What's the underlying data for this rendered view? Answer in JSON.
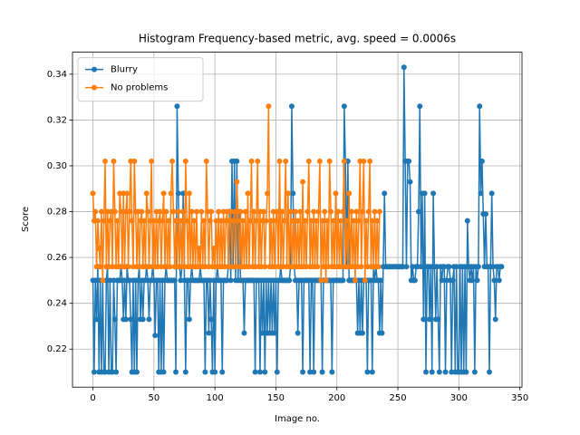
{
  "chart_data": {
    "type": "line",
    "title": "Histogram Frequency-based metric, avg. speed = 0.0006s",
    "x_label": "Image no.",
    "y_label": "Score",
    "xlim": [
      -16.75,
      351.75
    ],
    "xticks": [
      0,
      50,
      100,
      150,
      200,
      250,
      300,
      350
    ],
    "ylim": [
      0.2034,
      0.3496
    ],
    "yticks": [
      0.22,
      0.24,
      0.26,
      0.28,
      {
        "value": 0.3,
        "label": "0.30"
      },
      0.32,
      0.34
    ],
    "grid": true,
    "legend": "upper left",
    "series": [
      {
        "name": "Blurry",
        "color": "#1f77b4",
        "x": [
          0,
          1,
          2,
          3,
          4,
          5,
          6,
          7,
          8,
          9,
          10,
          11,
          12,
          13,
          14,
          15,
          16,
          17,
          18,
          19,
          20,
          21,
          22,
          23,
          24,
          25,
          26,
          27,
          28,
          29,
          30,
          31,
          32,
          33,
          34,
          35,
          36,
          37,
          38,
          39,
          40,
          41,
          42,
          43,
          44,
          45,
          46,
          47,
          48,
          49,
          50,
          51,
          52,
          53,
          54,
          55,
          56,
          57,
          58,
          59,
          60,
          61,
          62,
          63,
          64,
          65,
          66,
          67,
          68,
          69,
          70,
          71,
          72,
          73,
          74,
          75,
          76,
          77,
          78,
          79,
          80,
          81,
          82,
          83,
          84,
          85,
          86,
          87,
          88,
          89,
          90,
          91,
          92,
          93,
          94,
          95,
          96,
          97,
          98,
          99,
          100,
          101,
          102,
          103,
          104,
          105,
          106,
          107,
          108,
          109,
          110,
          111,
          112,
          113,
          114,
          115,
          116,
          117,
          118,
          119,
          120,
          121,
          122,
          123,
          124,
          125,
          126,
          127,
          128,
          129,
          130,
          131,
          132,
          133,
          134,
          135,
          136,
          137,
          138,
          139,
          140,
          141,
          142,
          143,
          144,
          145,
          146,
          147,
          148,
          149,
          150,
          151,
          152,
          153,
          154,
          155,
          156,
          157,
          158,
          159,
          160,
          161,
          162,
          163,
          164,
          165,
          166,
          167,
          168,
          169,
          170,
          171,
          172,
          173,
          174,
          175,
          176,
          177,
          178,
          179,
          180,
          181,
          182,
          183,
          184,
          185,
          186,
          187,
          188,
          189,
          190,
          191,
          192,
          193,
          194,
          195,
          196,
          197,
          198,
          199,
          200,
          201,
          202,
          203,
          204,
          205,
          206,
          207,
          208,
          209,
          210,
          211,
          212,
          213,
          214,
          215,
          216,
          217,
          218,
          219,
          220,
          221,
          222,
          223,
          224,
          225,
          226,
          227,
          228,
          229,
          230,
          231,
          232,
          233,
          234,
          235,
          236,
          237,
          238,
          239,
          240,
          241,
          242,
          243,
          244,
          245,
          246,
          247,
          248,
          249,
          250,
          251,
          252,
          253,
          254,
          255,
          256,
          257,
          258,
          259,
          260,
          261,
          262,
          263,
          264,
          265,
          266,
          267,
          268,
          269,
          270,
          271,
          272,
          273,
          274,
          275,
          276,
          277,
          278,
          279,
          280,
          281,
          282,
          283,
          284,
          285,
          286,
          287,
          288,
          289,
          290,
          291,
          292,
          293,
          294,
          295,
          296,
          297,
          298,
          299,
          300,
          301,
          302,
          303,
          304,
          305,
          306,
          307,
          308,
          309,
          310,
          311,
          312,
          313,
          314,
          315,
          316,
          317,
          318,
          319,
          320,
          321,
          322,
          323,
          324,
          325,
          326,
          327,
          328,
          329,
          330,
          331,
          332,
          333,
          334,
          335
        ],
        "values": [
          0.25,
          0.21,
          0.25,
          0.233,
          0.256,
          0.21,
          0.25,
          0.21,
          0.25,
          0.21,
          0.21,
          0.25,
          0.256,
          0.21,
          0.25,
          0.21,
          0.21,
          0.25,
          0.233,
          0.21,
          0.25,
          0.25,
          0.25,
          0.256,
          0.25,
          0.233,
          0.25,
          0.233,
          0.256,
          0.25,
          0.25,
          0.233,
          0.21,
          0.25,
          0.21,
          0.25,
          0.21,
          0.25,
          0.256,
          0.233,
          0.25,
          0.233,
          0.25,
          0.25,
          0.256,
          0.25,
          0.233,
          0.25,
          0.25,
          0.256,
          0.25,
          0.226,
          0.25,
          0.25,
          0.21,
          0.25,
          0.21,
          0.25,
          0.21,
          0.25,
          0.256,
          0.25,
          0.25,
          0.25,
          0.25,
          0.25,
          0.25,
          0.25,
          0.21,
          0.326,
          0.288,
          0.256,
          0.25,
          0.256,
          0.288,
          0.25,
          0.21,
          0.25,
          0.25,
          0.233,
          0.25,
          0.256,
          0.25,
          0.25,
          0.25,
          0.25,
          0.25,
          0.25,
          0.256,
          0.25,
          0.25,
          0.25,
          0.21,
          0.25,
          0.25,
          0.227,
          0.25,
          0.233,
          0.21,
          0.25,
          0.21,
          0.25,
          0.256,
          0.25,
          0.25,
          0.25,
          0.21,
          0.25,
          0.25,
          0.25,
          0.25,
          0.256,
          0.28,
          0.25,
          0.302,
          0.256,
          0.302,
          0.25,
          0.302,
          0.25,
          0.28,
          0.25,
          0.25,
          0.25,
          0.227,
          0.25,
          0.25,
          0.25,
          0.25,
          0.25,
          0.25,
          0.25,
          0.25,
          0.21,
          0.25,
          0.25,
          0.25,
          0.21,
          0.25,
          0.227,
          0.25,
          0.21,
          0.25,
          0.227,
          0.25,
          0.227,
          0.25,
          0.227,
          0.25,
          0.227,
          0.25,
          0.21,
          0.25,
          0.25,
          0.256,
          0.25,
          0.25,
          0.25,
          0.25,
          0.25,
          0.25,
          0.25,
          0.256,
          0.326,
          0.288,
          0.256,
          0.25,
          0.25,
          0.227,
          0.25,
          0.25,
          0.25,
          0.21,
          0.25,
          0.25,
          0.25,
          0.25,
          0.25,
          0.21,
          0.25,
          0.25,
          0.21,
          0.25,
          0.25,
          0.25,
          0.25,
          0.25,
          0.25,
          0.21,
          0.25,
          0.25,
          0.25,
          0.25,
          0.25,
          0.25,
          0.25,
          0.21,
          0.25,
          0.25,
          0.25,
          0.25,
          0.25,
          0.25,
          0.25,
          0.25,
          0.25,
          0.326,
          0.302,
          0.256,
          0.302,
          0.25,
          0.25,
          0.25,
          0.25,
          0.25,
          0.25,
          0.25,
          0.227,
          0.25,
          0.227,
          0.25,
          0.227,
          0.25,
          0.25,
          0.25,
          0.21,
          0.25,
          0.25,
          0.25,
          0.21,
          0.256,
          0.25,
          0.256,
          0.25,
          0.25,
          0.227,
          0.25,
          0.227,
          0.256,
          0.288,
          0.256,
          0.256,
          0.256,
          0.256,
          0.256,
          0.256,
          0.256,
          0.256,
          0.256,
          0.256,
          0.256,
          0.256,
          0.256,
          0.256,
          0.256,
          0.343,
          0.302,
          0.256,
          0.302,
          0.302,
          0.293,
          0.25,
          0.256,
          0.25,
          0.25,
          0.256,
          0.256,
          0.28,
          0.326,
          0.256,
          0.288,
          0.233,
          0.288,
          0.21,
          0.256,
          0.256,
          0.233,
          0.256,
          0.21,
          0.288,
          0.256,
          0.233,
          0.256,
          0.233,
          0.21,
          0.256,
          0.25,
          0.256,
          0.256,
          0.21,
          0.25,
          0.256,
          0.256,
          0.25,
          0.21,
          0.25,
          0.256,
          0.21,
          0.256,
          0.21,
          0.21,
          0.256,
          0.21,
          0.256,
          0.21,
          0.256,
          0.21,
          0.276,
          0.256,
          0.25,
          0.256,
          0.25,
          0.256,
          0.21,
          0.256,
          0.25,
          0.256,
          0.326,
          0.288,
          0.302,
          0.279,
          0.256,
          0.279,
          0.256,
          0.256,
          0.21,
          0.256,
          0.288,
          0.256,
          0.25,
          0.233,
          0.256,
          0.256,
          0.25,
          0.256,
          0.256
        ]
      },
      {
        "name": "No problems",
        "color": "#ff7f0e",
        "x": [
          0,
          1,
          2,
          3,
          4,
          5,
          6,
          7,
          8,
          9,
          10,
          11,
          12,
          13,
          14,
          15,
          16,
          17,
          18,
          19,
          20,
          21,
          22,
          23,
          24,
          25,
          26,
          27,
          28,
          29,
          30,
          31,
          32,
          33,
          34,
          35,
          36,
          37,
          38,
          39,
          40,
          41,
          42,
          43,
          44,
          45,
          46,
          47,
          48,
          49,
          50,
          51,
          52,
          53,
          54,
          55,
          56,
          57,
          58,
          59,
          60,
          61,
          62,
          63,
          64,
          65,
          66,
          67,
          68,
          69,
          70,
          71,
          72,
          73,
          74,
          75,
          76,
          77,
          78,
          79,
          80,
          81,
          82,
          83,
          84,
          85,
          86,
          87,
          88,
          89,
          90,
          91,
          92,
          93,
          94,
          95,
          96,
          97,
          98,
          99,
          100,
          101,
          102,
          103,
          104,
          105,
          106,
          107,
          108,
          109,
          110,
          111,
          112,
          113,
          114,
          115,
          116,
          117,
          118,
          119,
          120,
          121,
          122,
          123,
          124,
          125,
          126,
          127,
          128,
          129,
          130,
          131,
          132,
          133,
          134,
          135,
          136,
          137,
          138,
          139,
          140,
          141,
          142,
          143,
          144,
          145,
          146,
          147,
          148,
          149,
          150,
          151,
          152,
          153,
          154,
          155,
          156,
          157,
          158,
          159,
          160,
          161,
          162,
          163,
          164,
          165,
          166,
          167,
          168,
          169,
          170,
          171,
          172,
          173,
          174,
          175,
          176,
          177,
          178,
          179,
          180,
          181,
          182,
          183,
          184,
          185,
          186,
          187,
          188,
          189,
          190,
          191,
          192,
          193,
          194,
          195,
          196,
          197,
          198,
          199,
          200,
          201,
          202,
          203,
          204,
          205,
          206,
          207,
          208,
          209,
          210,
          211,
          212,
          213,
          214,
          215,
          216,
          217,
          218,
          219,
          220,
          221,
          222,
          223,
          224,
          225,
          226,
          227,
          228,
          229,
          230,
          231,
          232,
          233,
          234,
          235
        ],
        "values": [
          0.288,
          0.276,
          0.28,
          0.256,
          0.276,
          0.264,
          0.256,
          0.28,
          0.25,
          0.276,
          0.302,
          0.256,
          0.28,
          0.256,
          0.276,
          0.28,
          0.256,
          0.302,
          0.28,
          0.256,
          0.276,
          0.256,
          0.288,
          0.28,
          0.256,
          0.288,
          0.256,
          0.28,
          0.288,
          0.256,
          0.28,
          0.302,
          0.276,
          0.256,
          0.302,
          0.28,
          0.256,
          0.28,
          0.256,
          0.276,
          0.28,
          0.256,
          0.276,
          0.256,
          0.288,
          0.28,
          0.256,
          0.276,
          0.302,
          0.256,
          0.276,
          0.256,
          0.28,
          0.256,
          0.276,
          0.28,
          0.256,
          0.276,
          0.288,
          0.256,
          0.28,
          0.256,
          0.276,
          0.256,
          0.288,
          0.302,
          0.28,
          0.256,
          0.276,
          0.256,
          0.28,
          0.256,
          0.276,
          0.256,
          0.28,
          0.256,
          0.302,
          0.276,
          0.256,
          0.288,
          0.256,
          0.28,
          0.256,
          0.276,
          0.256,
          0.28,
          0.256,
          0.264,
          0.256,
          0.28,
          0.256,
          0.276,
          0.256,
          0.302,
          0.28,
          0.256,
          0.276,
          0.28,
          0.256,
          0.264,
          0.256,
          0.276,
          0.256,
          0.28,
          0.256,
          0.276,
          0.256,
          0.28,
          0.256,
          0.276,
          0.28,
          0.256,
          0.276,
          0.28,
          0.256,
          0.276,
          0.28,
          0.256,
          0.293,
          0.276,
          0.256,
          0.28,
          0.256,
          0.276,
          0.256,
          0.28,
          0.256,
          0.288,
          0.256,
          0.276,
          0.302,
          0.256,
          0.28,
          0.256,
          0.276,
          0.302,
          0.256,
          0.28,
          0.256,
          0.276,
          0.28,
          0.256,
          0.276,
          0.288,
          0.326,
          0.256,
          0.276,
          0.256,
          0.28,
          0.256,
          0.276,
          0.28,
          0.256,
          0.302,
          0.256,
          0.28,
          0.256,
          0.276,
          0.302,
          0.256,
          0.288,
          0.256,
          0.28,
          0.256,
          0.276,
          0.256,
          0.28,
          0.256,
          0.276,
          0.256,
          0.28,
          0.256,
          0.293,
          0.256,
          0.276,
          0.256,
          0.28,
          0.302,
          0.256,
          0.276,
          0.256,
          0.28,
          0.256,
          0.276,
          0.256,
          0.28,
          0.302,
          0.25,
          0.276,
          0.256,
          0.28,
          0.25,
          0.276,
          0.256,
          0.302,
          0.28,
          0.256,
          0.276,
          0.256,
          0.288,
          0.256,
          0.28,
          0.256,
          0.276,
          0.256,
          0.28,
          0.302,
          0.256,
          0.276,
          0.256,
          0.288,
          0.256,
          0.28,
          0.256,
          0.276,
          0.25,
          0.28,
          0.256,
          0.276,
          0.302,
          0.256,
          0.28,
          0.302,
          0.25,
          0.276,
          0.256,
          0.28,
          0.302,
          0.256,
          0.276,
          0.256,
          0.28,
          0.256,
          0.276,
          0.256,
          0.28
        ]
      }
    ]
  }
}
